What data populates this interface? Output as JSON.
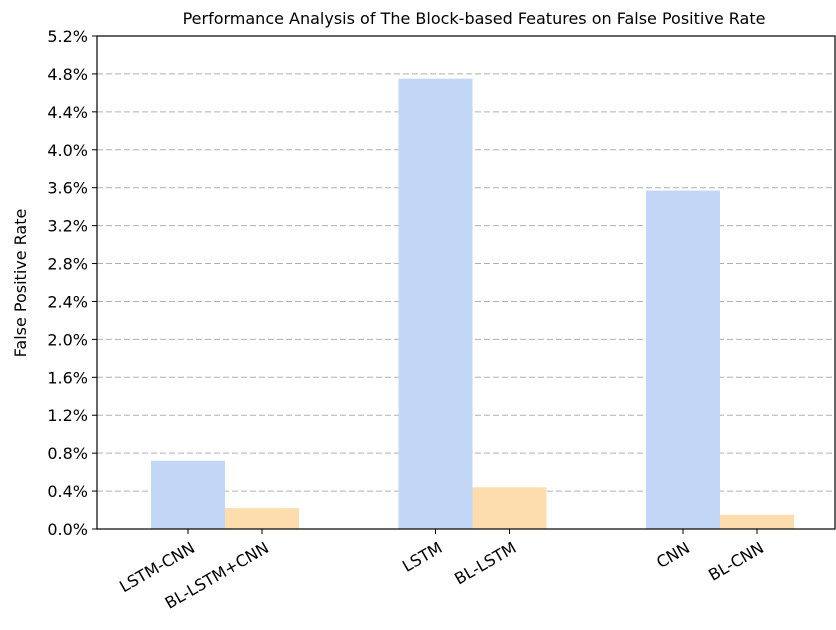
{
  "chart_data": {
    "type": "bar",
    "title": "Performance Analysis of The Block-based Features on False Positive Rate",
    "y_label": "False Positive Rate",
    "categories": [
      "LSTM-CNN",
      "BL-LSTM+CNN",
      "LSTM",
      "BL-LSTM",
      "CNN",
      "BL-CNN"
    ],
    "values": [
      0.72,
      0.22,
      4.75,
      0.44,
      3.57,
      0.15
    ],
    "colors": [
      "#c2d7f5",
      "#fddcad",
      "#c2d7f5",
      "#fddcad",
      "#c2d7f5",
      "#fddcad"
    ],
    "ylim": [
      0,
      5.2
    ],
    "yticks": [
      {
        "value": 0,
        "label": "0.0%"
      },
      {
        "value": 0.4,
        "label": "0.4%"
      },
      {
        "value": 0.8,
        "label": "0.8%"
      },
      {
        "value": 1.2,
        "label": "1.2%"
      },
      {
        "value": 1.6,
        "label": "1.6%"
      },
      {
        "value": 2.0,
        "label": "2.0%"
      },
      {
        "value": 2.4,
        "label": "2.4%"
      },
      {
        "value": 2.8,
        "label": "2.8%"
      },
      {
        "value": 3.2,
        "label": "3.2%"
      },
      {
        "value": 3.6,
        "label": "3.6%"
      },
      {
        "value": 4.0,
        "label": "4.0%"
      },
      {
        "value": 4.4,
        "label": "4.4%"
      },
      {
        "value": 4.8,
        "label": "4.8%"
      },
      {
        "value": 5.2,
        "label": "5.2%"
      }
    ],
    "grid": true
  }
}
